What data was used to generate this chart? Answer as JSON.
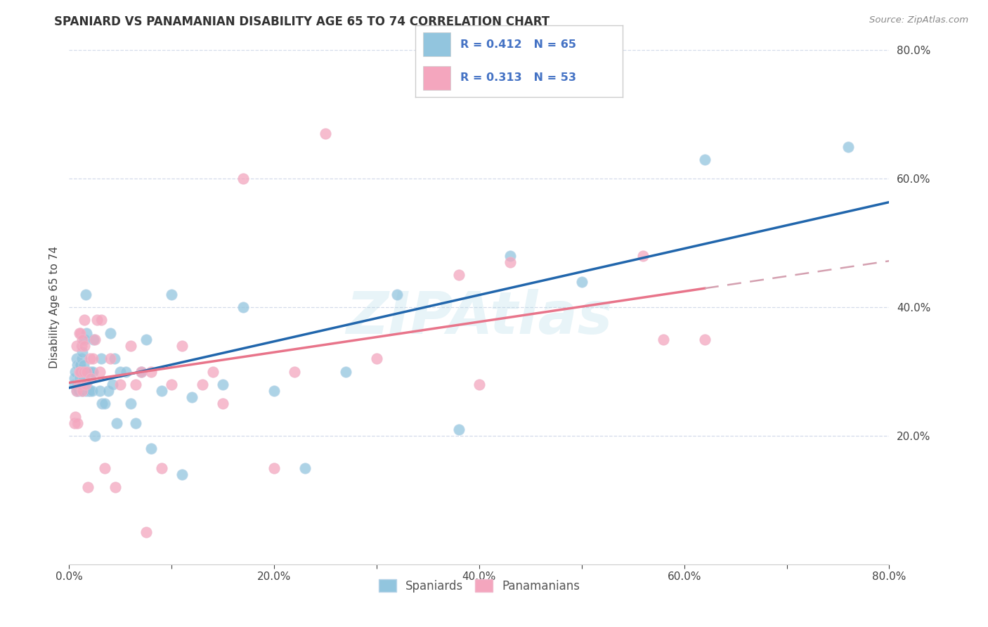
{
  "title": "SPANIARD VS PANAMANIAN DISABILITY AGE 65 TO 74 CORRELATION CHART",
  "source": "Source: ZipAtlas.com",
  "ylabel": "Disability Age 65 to 74",
  "xlim": [
    0.0,
    0.8
  ],
  "ylim": [
    0.0,
    0.8
  ],
  "xtick_labels": [
    "0.0%",
    "",
    "20.0%",
    "",
    "40.0%",
    "",
    "60.0%",
    "",
    "80.0%"
  ],
  "xtick_vals": [
    0.0,
    0.1,
    0.2,
    0.3,
    0.4,
    0.5,
    0.6,
    0.7,
    0.8
  ],
  "ytick_labels": [
    "20.0%",
    "40.0%",
    "60.0%",
    "80.0%"
  ],
  "ytick_vals": [
    0.2,
    0.4,
    0.6,
    0.8
  ],
  "spaniard_color": "#92c5de",
  "panamanian_color": "#f4a6be",
  "spaniard_line_color": "#2166ac",
  "panamanian_line_color": "#e8748a",
  "panamanian_dashed_color": "#d4a0b0",
  "watermark": "ZIPAtlas",
  "spaniard_x": [
    0.005,
    0.005,
    0.006,
    0.007,
    0.007,
    0.008,
    0.008,
    0.009,
    0.009,
    0.01,
    0.01,
    0.01,
    0.011,
    0.011,
    0.012,
    0.012,
    0.013,
    0.013,
    0.014,
    0.014,
    0.015,
    0.015,
    0.016,
    0.016,
    0.017,
    0.017,
    0.018,
    0.019,
    0.02,
    0.021,
    0.022,
    0.023,
    0.024,
    0.025,
    0.03,
    0.031,
    0.032,
    0.035,
    0.038,
    0.04,
    0.042,
    0.044,
    0.046,
    0.05,
    0.055,
    0.06,
    0.065,
    0.07,
    0.075,
    0.08,
    0.09,
    0.1,
    0.11,
    0.12,
    0.15,
    0.17,
    0.2,
    0.23,
    0.27,
    0.32,
    0.38,
    0.43,
    0.5,
    0.62,
    0.76
  ],
  "spaniard_y": [
    0.28,
    0.29,
    0.3,
    0.27,
    0.32,
    0.28,
    0.31,
    0.27,
    0.3,
    0.29,
    0.3,
    0.31,
    0.28,
    0.31,
    0.3,
    0.32,
    0.27,
    0.33,
    0.29,
    0.31,
    0.28,
    0.35,
    0.27,
    0.42,
    0.28,
    0.36,
    0.3,
    0.27,
    0.27,
    0.3,
    0.27,
    0.3,
    0.35,
    0.2,
    0.27,
    0.32,
    0.25,
    0.25,
    0.27,
    0.36,
    0.28,
    0.32,
    0.22,
    0.3,
    0.3,
    0.25,
    0.22,
    0.3,
    0.35,
    0.18,
    0.27,
    0.42,
    0.14,
    0.26,
    0.28,
    0.4,
    0.27,
    0.15,
    0.3,
    0.42,
    0.21,
    0.48,
    0.44,
    0.63,
    0.65
  ],
  "panamanian_x": [
    0.005,
    0.006,
    0.007,
    0.007,
    0.008,
    0.009,
    0.01,
    0.01,
    0.011,
    0.011,
    0.012,
    0.012,
    0.013,
    0.013,
    0.014,
    0.015,
    0.015,
    0.016,
    0.017,
    0.018,
    0.02,
    0.021,
    0.023,
    0.025,
    0.027,
    0.03,
    0.031,
    0.035,
    0.04,
    0.045,
    0.05,
    0.06,
    0.065,
    0.07,
    0.075,
    0.08,
    0.09,
    0.1,
    0.11,
    0.13,
    0.14,
    0.15,
    0.17,
    0.2,
    0.22,
    0.25,
    0.3,
    0.38,
    0.4,
    0.43,
    0.56,
    0.58,
    0.62
  ],
  "panamanian_y": [
    0.22,
    0.23,
    0.27,
    0.34,
    0.22,
    0.28,
    0.3,
    0.36,
    0.3,
    0.36,
    0.28,
    0.34,
    0.27,
    0.35,
    0.3,
    0.34,
    0.38,
    0.28,
    0.3,
    0.12,
    0.32,
    0.29,
    0.32,
    0.35,
    0.38,
    0.3,
    0.38,
    0.15,
    0.32,
    0.12,
    0.28,
    0.34,
    0.28,
    0.3,
    0.05,
    0.3,
    0.15,
    0.28,
    0.34,
    0.28,
    0.3,
    0.25,
    0.6,
    0.15,
    0.3,
    0.67,
    0.32,
    0.45,
    0.28,
    0.47,
    0.48,
    0.35,
    0.35
  ],
  "background_color": "#ffffff",
  "grid_color": "#d0d8e8"
}
